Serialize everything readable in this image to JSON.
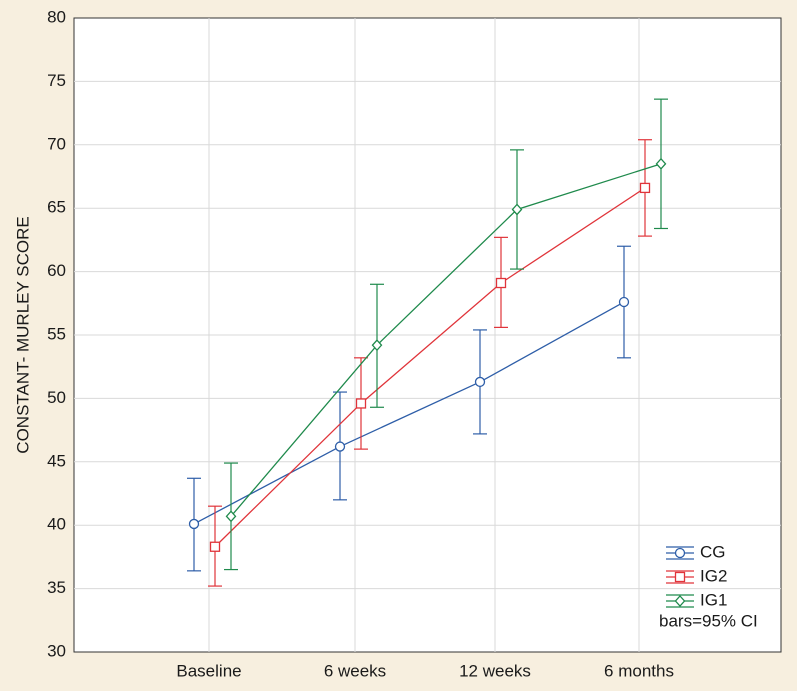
{
  "chart_data": {
    "type": "line",
    "title": "",
    "xlabel": "",
    "ylabel": "CONSTANT- MURLEY SCORE",
    "ylim": [
      30,
      80
    ],
    "yticks": [
      30,
      35,
      40,
      45,
      50,
      55,
      60,
      65,
      70,
      75,
      80
    ],
    "categories": [
      "Baseline",
      "6 weeks",
      "12 weeks",
      "6 months"
    ],
    "grid": true,
    "legend_position": "bottom-right",
    "legend_note": "bars=95% CI",
    "series": [
      {
        "name": "CG",
        "color": "#2e5ea8",
        "marker": "circle",
        "values": [
          40.1,
          46.2,
          51.3,
          57.6
        ],
        "ci_low": [
          36.4,
          42.0,
          47.2,
          53.2
        ],
        "ci_high": [
          43.7,
          50.5,
          55.4,
          62.0
        ]
      },
      {
        "name": "IG2",
        "color": "#e0343a",
        "marker": "square",
        "values": [
          38.3,
          49.6,
          59.1,
          66.6
        ],
        "ci_low": [
          35.2,
          46.0,
          55.6,
          62.8
        ],
        "ci_high": [
          41.5,
          53.2,
          62.7,
          70.4
        ]
      },
      {
        "name": "IG1",
        "color": "#1f8a4c",
        "marker": "diamond",
        "values": [
          40.7,
          54.2,
          64.9,
          68.5
        ],
        "ci_low": [
          36.5,
          49.3,
          60.2,
          63.4
        ],
        "ci_high": [
          44.9,
          59.0,
          69.6,
          73.6
        ]
      }
    ]
  }
}
